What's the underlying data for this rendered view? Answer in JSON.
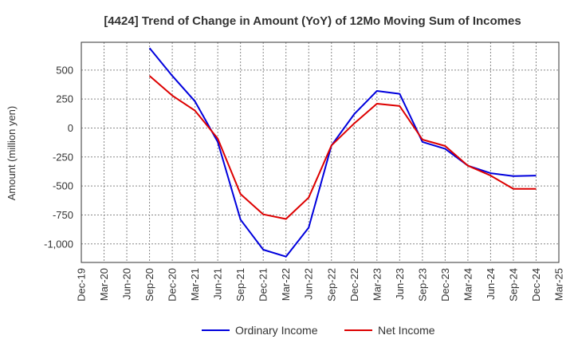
{
  "chart_data": {
    "type": "line",
    "title": "[4424]  Trend of Change in Amount (YoY) of 12Mo Moving Sum of Incomes",
    "ylabel": "Amount (million yen)",
    "xlabel": "",
    "ylim": [
      -1160,
      740
    ],
    "yticks": [
      500,
      250,
      0,
      -250,
      -500,
      -750,
      -1000
    ],
    "ytick_labels": [
      "500",
      "250",
      "0",
      "-250",
      "-500",
      "-750",
      "-1,000"
    ],
    "categories": [
      "Dec-19",
      "Mar-20",
      "Jun-20",
      "Sep-20",
      "Dec-20",
      "Mar-21",
      "Jun-21",
      "Sep-21",
      "Dec-21",
      "Mar-22",
      "Jun-22",
      "Sep-22",
      "Dec-22",
      "Mar-23",
      "Jun-23",
      "Sep-23",
      "Dec-23",
      "Mar-24",
      "Jun-24",
      "Sep-24",
      "Dec-24",
      "Mar-25"
    ],
    "grid": true,
    "legend_position": "bottom",
    "series": [
      {
        "name": "Ordinary Income",
        "color": "#0000dd",
        "values": [
          null,
          null,
          null,
          690,
          450,
          230,
          -120,
          -790,
          -1050,
          -1110,
          -860,
          -150,
          120,
          320,
          295,
          -120,
          -180,
          -325,
          -390,
          -415,
          -410,
          null
        ]
      },
      {
        "name": "Net Income",
        "color": "#dd0000",
        "values": [
          null,
          null,
          null,
          450,
          280,
          150,
          -90,
          -570,
          -745,
          -785,
          -600,
          -150,
          40,
          210,
          190,
          -100,
          -155,
          -325,
          -410,
          -525,
          -525,
          null
        ]
      }
    ]
  }
}
